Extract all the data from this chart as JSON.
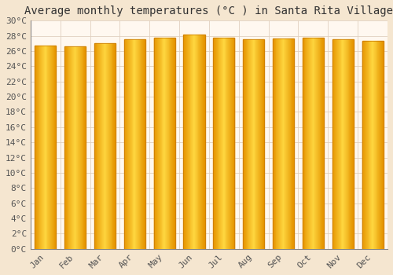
{
  "title": "Average monthly temperatures (°C ) in Santa Rita Village",
  "months": [
    "Jan",
    "Feb",
    "Mar",
    "Apr",
    "May",
    "Jun",
    "Jul",
    "Aug",
    "Sep",
    "Oct",
    "Nov",
    "Dec"
  ],
  "values": [
    26.7,
    26.6,
    27.0,
    27.6,
    27.8,
    28.2,
    27.8,
    27.5,
    27.7,
    27.8,
    27.6,
    27.3
  ],
  "bar_color_center": "#FFD740",
  "bar_color_edge": "#E59400",
  "bar_color_bottom": "#F5A800",
  "background_color": "#F5E6D0",
  "plot_bg_color": "#FFF8F0",
  "grid_color": "#E0D0C0",
  "ylim": [
    0,
    30
  ],
  "ytick_step": 2,
  "title_fontsize": 10,
  "tick_fontsize": 8,
  "font_family": "monospace"
}
